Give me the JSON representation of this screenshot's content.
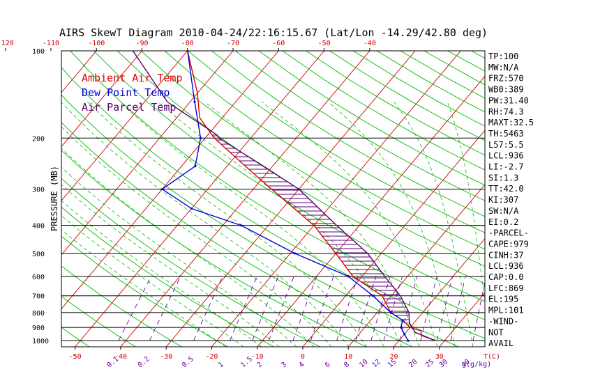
{
  "chart_data": {
    "type": "line",
    "title": "AIRS SkewT Diagram 2010-04-24/22:16:15.67 (Lat/Lon -14.29/42.80 deg)",
    "ylabel": "PRESSURE (MB)",
    "xlabel": "T(C)",
    "mixing_label": "g(g/kg)",
    "y_scale": "log",
    "ylim": [
      1050,
      100
    ],
    "xlim": [
      -53,
      40
    ],
    "pressure_ticks": [
      "100",
      "200",
      "300",
      "400",
      "500",
      "600",
      "700",
      "800",
      "900",
      "1000"
    ],
    "top_temp_ticks": [
      "-120",
      "-110",
      "-100",
      "-90",
      "-80",
      "-70",
      "-60",
      "-50",
      "-40"
    ],
    "bottom_temp_ticks": [
      "-50",
      "-40",
      "-30",
      "-20",
      "-10",
      "0",
      "10",
      "20",
      "30"
    ],
    "mixing_ratio_ticks": [
      "0.1",
      "0.2",
      "0.5",
      "1",
      "1.5",
      "2",
      "3",
      "4",
      "6",
      "8",
      "10",
      "12",
      "15",
      "20",
      "25",
      "30",
      "40"
    ],
    "legend": [
      {
        "label": "Ambient Air Temp",
        "color": "#dd0000"
      },
      {
        "label": "Dew Point Temp",
        "color": "#0000dd"
      },
      {
        "label": "Air Parcel Temp",
        "color": "#5a0070"
      }
    ],
    "series": [
      {
        "name": "Ambient Air Temp",
        "color": "#dd0000",
        "points": [
          [
            1000,
            28
          ],
          [
            960,
            24
          ],
          [
            925,
            23
          ],
          [
            900,
            20
          ],
          [
            850,
            17
          ],
          [
            800,
            13
          ],
          [
            700,
            8
          ],
          [
            600,
            -2
          ],
          [
            500,
            -10
          ],
          [
            400,
            -20
          ],
          [
            300,
            -36
          ],
          [
            250,
            -46
          ],
          [
            200,
            -58
          ],
          [
            170,
            -65
          ],
          [
            140,
            -70
          ],
          [
            100,
            -80
          ]
        ]
      },
      {
        "name": "Dew Point Temp",
        "color": "#0000dd",
        "points": [
          [
            1000,
            22
          ],
          [
            950,
            20
          ],
          [
            900,
            18
          ],
          [
            850,
            17
          ],
          [
            800,
            13
          ],
          [
            700,
            6
          ],
          [
            600,
            -3
          ],
          [
            500,
            -19
          ],
          [
            400,
            -36
          ],
          [
            350,
            -50
          ],
          [
            300,
            -60
          ],
          [
            250,
            -57
          ],
          [
            200,
            -61
          ],
          [
            150,
            -69
          ],
          [
            100,
            -80
          ]
        ]
      },
      {
        "name": "Air Parcel Temp",
        "color": "#5a0070",
        "points": [
          [
            1000,
            28
          ],
          [
            936,
            22
          ],
          [
            869,
            19
          ],
          [
            800,
            17
          ],
          [
            700,
            12
          ],
          [
            600,
            5
          ],
          [
            500,
            -3
          ],
          [
            400,
            -15
          ],
          [
            300,
            -30
          ],
          [
            250,
            -42
          ],
          [
            200,
            -57
          ],
          [
            195,
            -58
          ],
          [
            150,
            -75
          ],
          [
            100,
            -92
          ]
        ]
      }
    ]
  },
  "indices": [
    "TP:100",
    "MW:N/A",
    "FRZ:570",
    "WB0:389",
    "PW:31.40",
    "RH:74.3",
    "MAXT:32.5",
    "TH:5463",
    "L57:5.5",
    "LCL:936",
    "LI:-2.7",
    "SI:1.3",
    "TT:42.0",
    "KI:307",
    "SW:N/A",
    "EI:0.2",
    "-PARCEL-",
    "CAPE:979",
    "CINH:37",
    "LCL:936",
    "CAP:0.0",
    "LFC:869",
    "EL:195",
    "MPL:101",
    "-WIND-",
    "NOT",
    "AVAIL"
  ],
  "colors": {
    "isotherm": "#cc0000",
    "dry_adiabat": "#00bb00",
    "moist_adiabat": "#00bb00",
    "mixing_ratio": "#6a00a8",
    "isobar": "#000000"
  }
}
